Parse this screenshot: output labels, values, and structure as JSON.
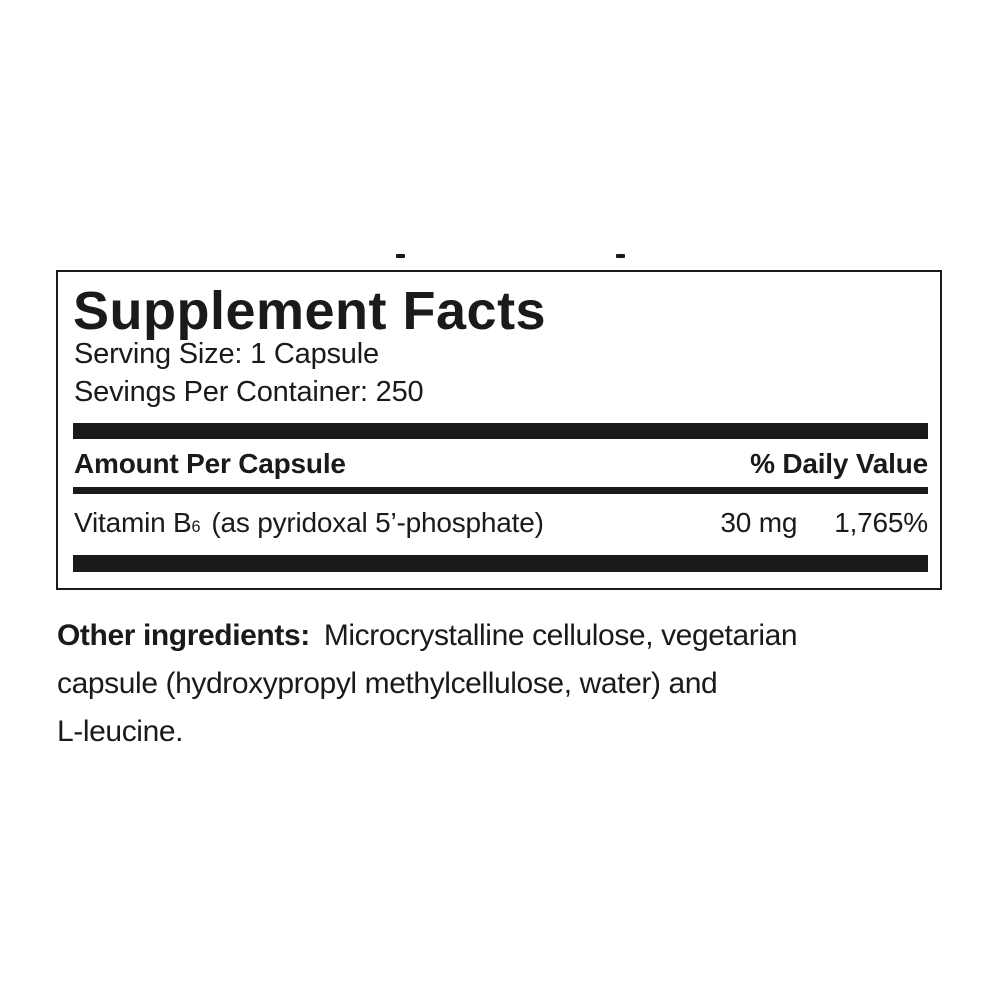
{
  "colors": {
    "ink": "#1a1a1a",
    "background": "#ffffff"
  },
  "facts_panel": {
    "title": "Supplement Facts",
    "serving_size_line": "Serving Size: 1 Capsule",
    "servings_per_container_line": "Sevings Per Container: 250",
    "headers": {
      "amount": "Amount Per Capsule",
      "daily_value": "% Daily Value"
    },
    "rows": [
      {
        "name": "Vitamin B",
        "name_subscript": "6",
        "detail": "(as pyridoxal 5’-phosphate)",
        "amount": "30 mg",
        "daily_value": "1,765%"
      }
    ]
  },
  "other_ingredients": {
    "label": "Other ingredients:",
    "line1_rest": "Microcrystalline cellulose, vegetarian",
    "line2": "capsule (hydroxypropyl methylcellulose, water) and",
    "line3": "L-leucine.",
    "full_text": "Other ingredients: Microcrystalline cellulose, vegetarian capsule (hydroxypropyl methylcellulose, water) and L-leucine."
  }
}
